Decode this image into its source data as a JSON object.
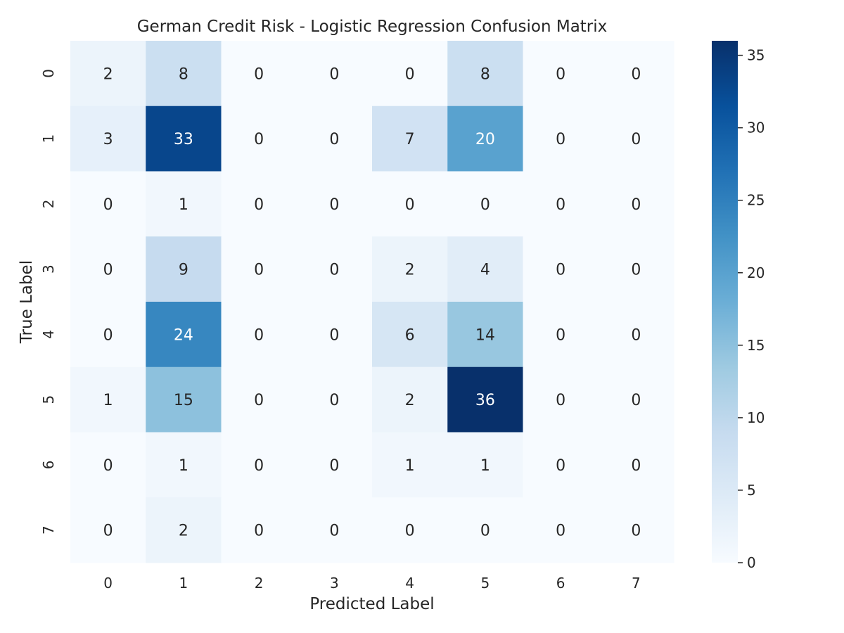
{
  "chart_data": {
    "type": "heatmap",
    "title": "German Credit Risk - Logistic Regression Confusion Matrix",
    "xlabel": "Predicted Label",
    "ylabel": "True Label",
    "x_categories": [
      "0",
      "1",
      "2",
      "3",
      "4",
      "5",
      "6",
      "7"
    ],
    "y_categories": [
      "0",
      "1",
      "2",
      "3",
      "4",
      "5",
      "6",
      "7"
    ],
    "values": [
      [
        2,
        8,
        0,
        0,
        0,
        8,
        0,
        0
      ],
      [
        3,
        33,
        0,
        0,
        7,
        20,
        0,
        0
      ],
      [
        0,
        1,
        0,
        0,
        0,
        0,
        0,
        0
      ],
      [
        0,
        9,
        0,
        0,
        2,
        4,
        0,
        0
      ],
      [
        0,
        24,
        0,
        0,
        6,
        14,
        0,
        0
      ],
      [
        1,
        15,
        0,
        0,
        2,
        36,
        0,
        0
      ],
      [
        0,
        1,
        0,
        0,
        1,
        1,
        0,
        0
      ],
      [
        0,
        2,
        0,
        0,
        0,
        0,
        0,
        0
      ]
    ],
    "colorbar": {
      "min": 0,
      "max": 36,
      "ticks": [
        0,
        5,
        10,
        15,
        20,
        25,
        30,
        35
      ],
      "colormap": "Blues"
    },
    "annotations": "cell counts",
    "grid": false
  }
}
